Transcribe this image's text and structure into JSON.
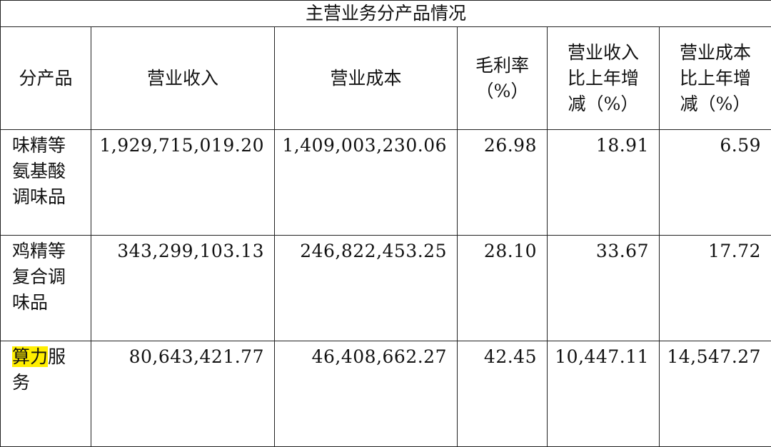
{
  "table": {
    "title": "主营业务分产品情况",
    "headers": [
      "分产品",
      "营业收入",
      "营业成本",
      "毛利率（%）",
      "营业收入比上年增减（%）",
      "营业成本比上年增减（%）"
    ],
    "rows": [
      {
        "product_highlight": "",
        "product": "味精等氨基酸调味品",
        "revenue": "1,929,715,019.20",
        "cost": "1,409,003,230.06",
        "gross_margin": "26.98",
        "revenue_change": "18.91",
        "cost_change": "6.59"
      },
      {
        "product_highlight": "",
        "product": "鸡精等复合调味品",
        "revenue": "343,299,103.13",
        "cost": "246,822,453.25",
        "gross_margin": "28.10",
        "revenue_change": "33.67",
        "cost_change": "17.72"
      },
      {
        "product_highlight": "算力",
        "product": "服务",
        "revenue": "80,643,421.77",
        "cost": "46,408,662.27",
        "gross_margin": "42.45",
        "revenue_change": "10,447.11",
        "cost_change": "14,547.27"
      }
    ],
    "highlight_color": "#ffee00"
  }
}
